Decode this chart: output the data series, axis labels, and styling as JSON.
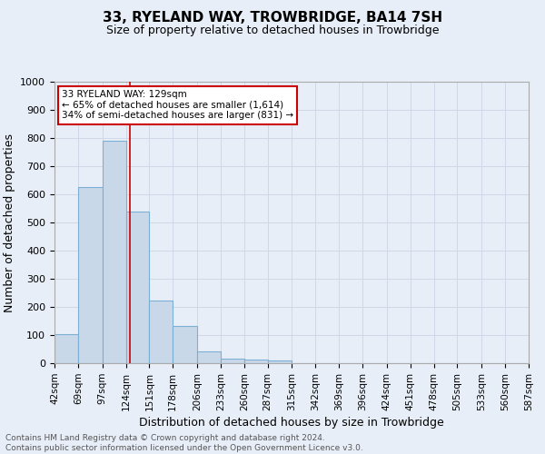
{
  "title": "33, RYELAND WAY, TROWBRIDGE, BA14 7SH",
  "subtitle": "Size of property relative to detached houses in Trowbridge",
  "xlabel": "Distribution of detached houses by size in Trowbridge",
  "ylabel": "Number of detached properties",
  "footer_line1": "Contains HM Land Registry data © Crown copyright and database right 2024.",
  "footer_line2": "Contains public sector information licensed under the Open Government Licence v3.0.",
  "bar_edges": [
    42,
    69,
    97,
    124,
    151,
    178,
    206,
    233,
    260,
    287,
    315,
    342,
    369,
    396,
    424,
    451,
    478,
    505,
    533,
    560,
    587
  ],
  "bar_heights": [
    103,
    625,
    790,
    540,
    223,
    133,
    43,
    17,
    12,
    9,
    0,
    0,
    0,
    0,
    0,
    0,
    0,
    0,
    0,
    0
  ],
  "bar_color": "#c8d8e8",
  "bar_edge_color": "#7bafd4",
  "vline_x": 129,
  "vline_color": "#cc0000",
  "annotation_line1": "33 RYELAND WAY: 129sqm",
  "annotation_line2": "← 65% of detached houses are smaller (1,614)",
  "annotation_line3": "34% of semi-detached houses are larger (831) →",
  "annotation_box_color": "#ffffff",
  "annotation_box_edge": "#cc0000",
  "ylim": [
    0,
    1000
  ],
  "yticks": [
    0,
    100,
    200,
    300,
    400,
    500,
    600,
    700,
    800,
    900,
    1000
  ],
  "tick_labels": [
    "42sqm",
    "69sqm",
    "97sqm",
    "124sqm",
    "151sqm",
    "178sqm",
    "206sqm",
    "233sqm",
    "260sqm",
    "287sqm",
    "315sqm",
    "342sqm",
    "369sqm",
    "396sqm",
    "424sqm",
    "451sqm",
    "478sqm",
    "505sqm",
    "533sqm",
    "560sqm",
    "587sqm"
  ],
  "grid_color": "#d0d8e8",
  "background_color": "#e8eef8",
  "title_fontsize": 11,
  "subtitle_fontsize": 9,
  "xlabel_fontsize": 9,
  "ylabel_fontsize": 9,
  "annotation_fontsize": 7.5,
  "tick_fontsize": 7.5,
  "ytick_fontsize": 8,
  "footer_fontsize": 6.5
}
